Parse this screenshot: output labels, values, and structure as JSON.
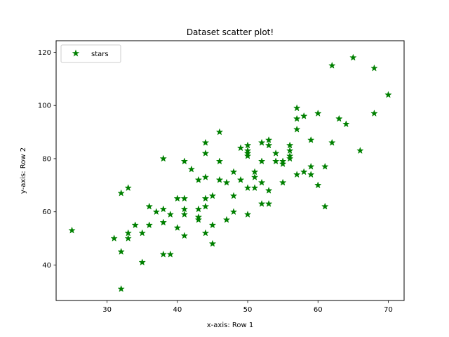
{
  "chart_data": {
    "type": "scatter",
    "title": "Dataset scatter plot!",
    "xlabel": "x-axis: Row 1",
    "ylabel": "y-axis: Row 2",
    "xlim": [
      22.75,
      72.25
    ],
    "ylim": [
      26.65,
      124.35
    ],
    "xticks": [
      30,
      40,
      50,
      60,
      70
    ],
    "yticks": [
      40,
      60,
      80,
      100,
      120
    ],
    "grid": false,
    "legend_position": "top-left",
    "marker": "star",
    "series": [
      {
        "name": "stars",
        "color": "#008000",
        "points": [
          [
            25,
            53
          ],
          [
            31,
            50
          ],
          [
            32,
            31
          ],
          [
            32,
            45
          ],
          [
            32,
            67
          ],
          [
            33,
            50
          ],
          [
            33,
            52
          ],
          [
            33,
            69
          ],
          [
            34,
            55
          ],
          [
            35,
            41
          ],
          [
            35,
            52
          ],
          [
            36,
            55
          ],
          [
            36,
            62
          ],
          [
            37,
            60
          ],
          [
            38,
            44
          ],
          [
            38,
            56
          ],
          [
            38,
            61
          ],
          [
            38,
            80
          ],
          [
            39,
            44
          ],
          [
            39,
            59
          ],
          [
            40,
            54
          ],
          [
            40,
            65
          ],
          [
            41,
            51
          ],
          [
            41,
            59
          ],
          [
            41,
            61
          ],
          [
            41,
            65
          ],
          [
            41,
            79
          ],
          [
            42,
            76
          ],
          [
            43,
            57
          ],
          [
            43,
            58
          ],
          [
            43,
            61
          ],
          [
            43,
            72
          ],
          [
            44,
            52
          ],
          [
            44,
            62
          ],
          [
            44,
            65
          ],
          [
            44,
            73
          ],
          [
            44,
            82
          ],
          [
            44,
            86
          ],
          [
            45,
            48
          ],
          [
            45,
            55
          ],
          [
            45,
            66
          ],
          [
            46,
            72
          ],
          [
            46,
            79
          ],
          [
            46,
            90
          ],
          [
            47,
            57
          ],
          [
            47,
            71
          ],
          [
            48,
            60
          ],
          [
            48,
            66
          ],
          [
            48,
            75
          ],
          [
            49,
            72
          ],
          [
            49,
            84
          ],
          [
            50,
            59
          ],
          [
            50,
            69
          ],
          [
            50,
            81
          ],
          [
            50,
            82
          ],
          [
            50,
            83
          ],
          [
            50,
            85
          ],
          [
            51,
            69
          ],
          [
            51,
            73
          ],
          [
            51,
            75
          ],
          [
            52,
            63
          ],
          [
            52,
            71
          ],
          [
            52,
            79
          ],
          [
            52,
            86
          ],
          [
            53,
            63
          ],
          [
            53,
            68
          ],
          [
            53,
            85
          ],
          [
            53,
            87
          ],
          [
            54,
            79
          ],
          [
            54,
            82
          ],
          [
            55,
            71
          ],
          [
            55,
            78
          ],
          [
            55,
            79
          ],
          [
            56,
            80
          ],
          [
            56,
            81
          ],
          [
            56,
            83
          ],
          [
            56,
            85
          ],
          [
            57,
            74
          ],
          [
            57,
            91
          ],
          [
            57,
            95
          ],
          [
            57,
            99
          ],
          [
            58,
            75
          ],
          [
            58,
            96
          ],
          [
            59,
            74
          ],
          [
            59,
            77
          ],
          [
            59,
            87
          ],
          [
            60,
            70
          ],
          [
            60,
            97
          ],
          [
            61,
            62
          ],
          [
            61,
            77
          ],
          [
            62,
            86
          ],
          [
            62,
            115
          ],
          [
            63,
            95
          ],
          [
            64,
            93
          ],
          [
            65,
            118
          ],
          [
            66,
            83
          ],
          [
            68,
            97
          ],
          [
            68,
            114
          ],
          [
            70,
            104
          ]
        ]
      }
    ]
  }
}
